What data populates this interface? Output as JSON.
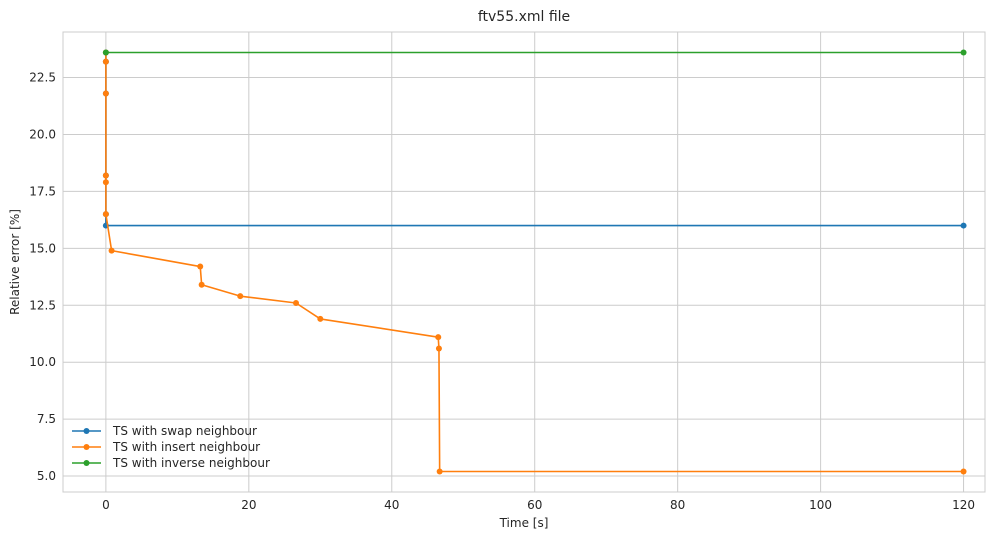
{
  "chart_data": {
    "type": "line",
    "title": "ftv55.xml file",
    "xlabel": "Time [s]",
    "ylabel": "Relative error [%]",
    "xlim": [
      -6,
      123
    ],
    "ylim": [
      4.3,
      24.5
    ],
    "xticks": [
      0,
      20,
      40,
      60,
      80,
      100,
      120
    ],
    "yticks": [
      5.0,
      7.5,
      10.0,
      12.5,
      15.0,
      17.5,
      20.0,
      22.5
    ],
    "xtick_labels": [
      "0",
      "20",
      "40",
      "60",
      "80",
      "100",
      "120"
    ],
    "ytick_labels": [
      "5.0",
      "7.5",
      "10.0",
      "12.5",
      "15.0",
      "17.5",
      "20.0",
      "22.5"
    ],
    "grid": true,
    "legend_position": "lower-left",
    "series": [
      {
        "name": "TS with swap neighbour",
        "color": "#1f77b4",
        "x": [
          0,
          0,
          0,
          0,
          0,
          0,
          120
        ],
        "y": [
          23.6,
          23.2,
          21.8,
          18.2,
          16.5,
          16.0,
          16.0
        ]
      },
      {
        "name": "TS with insert neighbour",
        "color": "#ff7f0e",
        "x": [
          0,
          0,
          0,
          0,
          0,
          0,
          0.8,
          13.2,
          13.4,
          18.8,
          26.6,
          30.0,
          46.5,
          46.6,
          46.7,
          120
        ],
        "y": [
          23.6,
          23.2,
          21.8,
          18.2,
          17.9,
          16.5,
          14.9,
          14.2,
          13.4,
          12.9,
          12.6,
          11.9,
          11.1,
          10.6,
          5.2,
          5.2
        ]
      },
      {
        "name": "TS with inverse neighbour",
        "color": "#2ca02c",
        "x": [
          0,
          120
        ],
        "y": [
          23.6,
          23.6
        ]
      }
    ]
  }
}
